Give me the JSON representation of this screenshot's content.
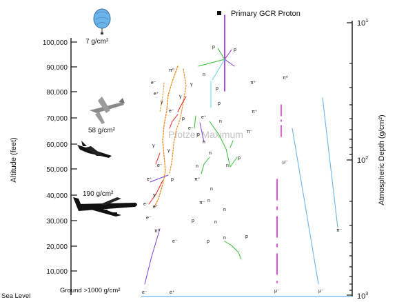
{
  "title": "Primary GCR Proton",
  "watermark": "Pfotzer Maximum",
  "left_axis": {
    "label": "Altitude (feet)",
    "ticks": [
      "100,000",
      "90,000",
      "80,000",
      "70,000",
      "60,000",
      "50,000",
      "40,000",
      "30,000",
      "20,000",
      "10,000"
    ],
    "bottom_label": "Sea Level"
  },
  "right_axis": {
    "label": "Atmospheric Depth (g/cm²)",
    "ticks": [
      {
        "base": "10",
        "exp": "1"
      },
      {
        "base": "10",
        "exp": "2"
      },
      {
        "base": "10",
        "exp": "3"
      }
    ]
  },
  "annotations": {
    "balloon_depth": "7 g/cm²",
    "concorde_depth": "58 g/cm²",
    "airliner_depth": "190 g/cm²",
    "ground_depth": "Ground  >1000 g/cm²"
  },
  "particles": {
    "p": "p",
    "n": "n",
    "pi_plus": "π⁺",
    "pi_minus": "π⁻",
    "pi_zero": "π⁰",
    "mu_plus": "μ⁺",
    "mu_minus": "μ⁻",
    "gamma": "γ",
    "e_plus": "e⁺",
    "e_minus": "e⁻"
  },
  "colors": {
    "axis": "#111111",
    "proton": "#9b1fd8",
    "green": "#2fbf2f",
    "orange": "#f08a1c",
    "red": "#e02020",
    "cyan": "#5fd3e6",
    "magenta": "#e020d8",
    "lightblue": "#6ab4ec",
    "purple": "#7a3fd8",
    "watermark": "#bdbdbd"
  }
}
